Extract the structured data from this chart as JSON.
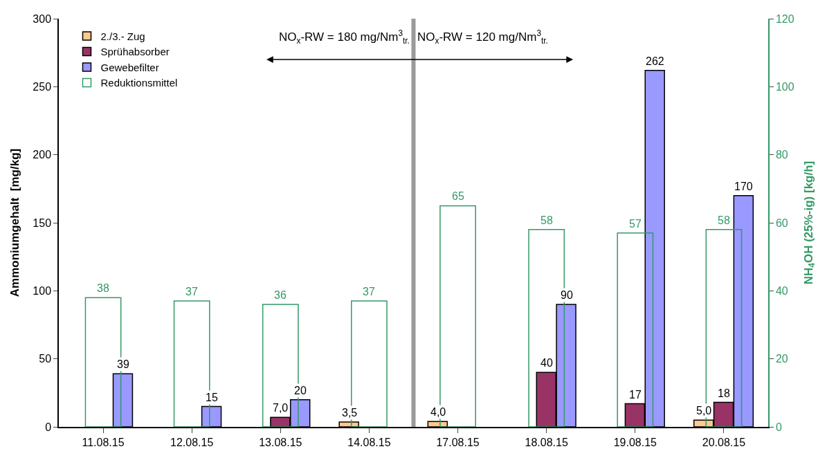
{
  "chart_data": {
    "type": "bar",
    "categories": [
      "11.08.15",
      "12.08.15",
      "13.08.15",
      "14.08.15",
      "17.08.15",
      "18.08.15",
      "19.08.15",
      "20.08.15"
    ],
    "series": [
      {
        "name": "2./3.- Zug",
        "color": "#fcc98e",
        "values": [
          null,
          null,
          null,
          3.5,
          4.0,
          null,
          null,
          5.0
        ],
        "value_labels": [
          null,
          null,
          null,
          "3,5",
          "4,0",
          null,
          null,
          "5,0"
        ]
      },
      {
        "name": "Sprühabsorber",
        "color": "#993366",
        "values": [
          null,
          null,
          7.0,
          null,
          null,
          40,
          17,
          18
        ],
        "value_labels": [
          null,
          null,
          "7,0",
          null,
          null,
          "40",
          "17",
          "18"
        ]
      },
      {
        "name": "Gewebefilter",
        "color": "#9999ff",
        "values": [
          39,
          15,
          20,
          null,
          null,
          90,
          262,
          170
        ],
        "value_labels": [
          "39",
          "15",
          "20",
          null,
          null,
          "90",
          "262",
          "170"
        ]
      },
      {
        "name": "Reduktionsmittel",
        "color": "#339966",
        "axis": "y2",
        "values": [
          38,
          37,
          36,
          37,
          65,
          58,
          57,
          58
        ],
        "value_labels": [
          "38",
          "37",
          "36",
          "37",
          "65",
          "58",
          "57",
          "58"
        ]
      }
    ],
    "ylabel": "Ammoniumgehalt  [mg/kg]",
    "y2label": "NH$_{4}$OH (25%-ig) [kg/h]",
    "ylim": [
      0,
      300
    ],
    "yticks": [
      0,
      50,
      100,
      150,
      200,
      250,
      300
    ],
    "y2lim": [
      0,
      120
    ],
    "y2ticks": [
      0,
      20,
      40,
      60,
      80,
      100,
      120
    ],
    "annotations": [
      "NO$_{x}$-RW = 180 mg/Nm$^{3}$$_{tr.}$",
      "NO$_{x}$-RW = 120 mg/Nm$^{3}$$_{tr.}$"
    ],
    "legend": "top left"
  }
}
